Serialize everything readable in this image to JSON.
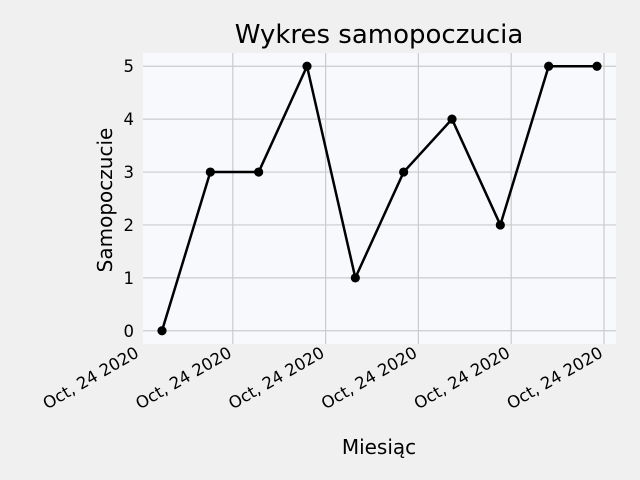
{
  "chart_data": {
    "type": "line",
    "title": "Wykres samopoczucia",
    "xlabel": "Miesiąc",
    "ylabel": "Samopoczucie",
    "x_tick_labels": [
      "Oct, 24 2020",
      "Oct, 24 2020",
      "Oct, 24 2020",
      "Oct, 24 2020",
      "Oct, 24 2020",
      "Oct, 24 2020"
    ],
    "y_tick_labels": [
      "0",
      "1",
      "2",
      "3",
      "4",
      "5"
    ],
    "series": [
      {
        "values": [
          0,
          3,
          3,
          5,
          1,
          3,
          4,
          2,
          5,
          5
        ]
      }
    ],
    "ylim": [
      -0.25,
      5.25
    ],
    "grid": true,
    "line_color": "#000000",
    "marker": "circle",
    "plot_background": "#f7f9fc",
    "figure_background": "#f0f0f0",
    "grid_color": "#cbcbcb"
  }
}
